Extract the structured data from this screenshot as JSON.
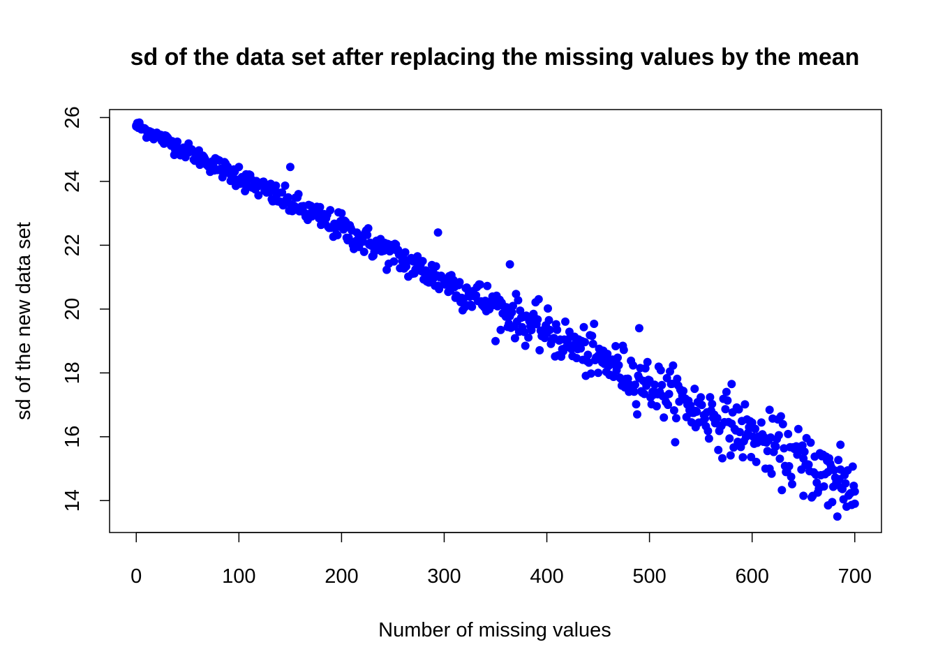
{
  "chart_data": {
    "type": "scatter",
    "title": "sd of the data set after replacing the missing values by the mean",
    "xlabel": "Number of missing values",
    "ylabel": "sd of the new data set",
    "xlim": [
      -26,
      726
    ],
    "ylim": [
      13.0,
      26.25
    ],
    "xticks": [
      0,
      100,
      200,
      300,
      400,
      500,
      600,
      700
    ],
    "yticks": [
      14,
      16,
      18,
      20,
      22,
      24,
      26
    ],
    "point_color": "#0000ff",
    "grid": false,
    "legend": "none",
    "trend": {
      "x_start": 0,
      "x_end": 700,
      "y_start": 25.75,
      "y_end": 14.4
    },
    "series": [
      {
        "sample_points": [
          [
            0,
            25.75
          ],
          [
            50,
            25.1
          ],
          [
            100,
            24.45
          ],
          [
            150,
            24.45
          ],
          [
            200,
            23.0
          ],
          [
            232,
            21.8
          ],
          [
            294,
            22.4
          ],
          [
            364,
            21.4
          ],
          [
            398,
            19.1
          ],
          [
            450,
            18.0
          ],
          [
            490,
            19.4
          ],
          [
            545,
            16.3
          ],
          [
            580,
            17.65
          ],
          [
            617,
            15.0
          ],
          [
            650,
            14.15
          ],
          [
            674,
            13.85
          ],
          [
            683,
            13.5
          ],
          [
            686,
            15.75
          ],
          [
            700,
            13.9
          ]
        ]
      }
    ]
  }
}
